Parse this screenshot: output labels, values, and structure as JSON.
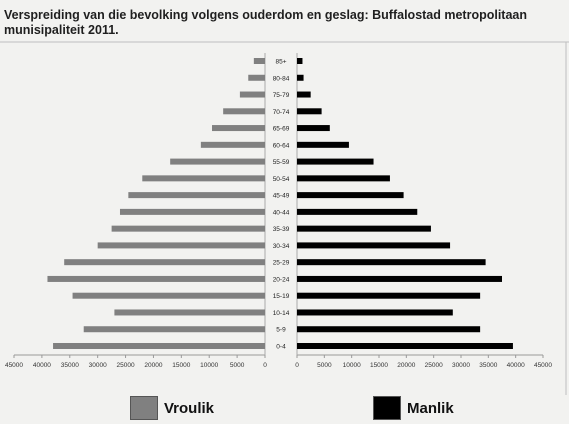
{
  "title_line1": "Verspreiding van die bevolking volgens ouderdom en geslag: Buffalostad metropolitaan",
  "title_line2": "munisipaliteit 2011.",
  "chart_data": {
    "type": "bar",
    "subtype": "population-pyramid",
    "categories": [
      "0-4",
      "5-9",
      "10-14",
      "15-19",
      "20-24",
      "25-29",
      "30-34",
      "35-39",
      "40-44",
      "45-49",
      "50-54",
      "55-59",
      "60-64",
      "65-69",
      "70-74",
      "75-79",
      "80-84",
      "85+"
    ],
    "series": [
      {
        "name": "Vroulik",
        "color": "#808080",
        "values": [
          38000,
          32500,
          27000,
          34500,
          39000,
          36000,
          30000,
          27500,
          26000,
          24500,
          22000,
          17000,
          11500,
          9500,
          7500,
          4500,
          3000,
          2000
        ]
      },
      {
        "name": "Manlik",
        "color": "#000000",
        "values": [
          39500,
          33500,
          28500,
          33500,
          37500,
          34500,
          28000,
          24500,
          22000,
          19500,
          17000,
          14000,
          9500,
          6000,
          4500,
          2500,
          1200,
          1000
        ]
      }
    ],
    "left_axis_ticks": [
      "45000",
      "40000",
      "35000",
      "30000",
      "25000",
      "20000",
      "15000",
      "10000",
      "5000",
      "0"
    ],
    "right_axis_ticks": [
      "0",
      "5000",
      "10000",
      "15000",
      "20000",
      "25000",
      "30000",
      "35000",
      "40000",
      "45000"
    ],
    "xlim": [
      0,
      45000
    ],
    "legend_position": "bottom",
    "grid": false
  }
}
